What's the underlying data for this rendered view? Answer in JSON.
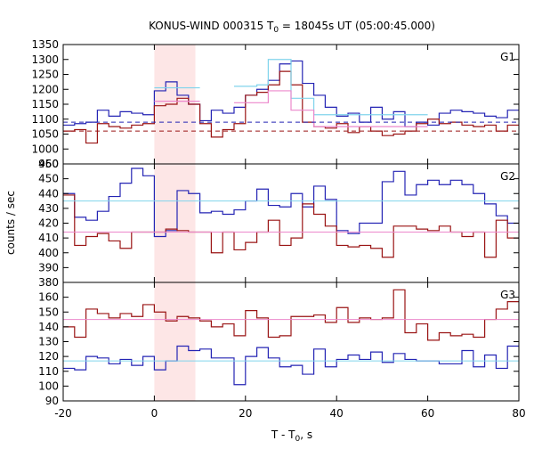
{
  "title": "KONUS-WIND 000315 T",
  "title_sub": "0",
  "title_rest": " = 18045s UT (05:00:45.000)",
  "xlabel": "T - T",
  "xlabel_sub": "0",
  "xlabel_rest": ", s",
  "ylabel": "counts / sec",
  "colors": {
    "blue": "#2424b4",
    "red": "#9a1414",
    "cyan": "#80d4ec",
    "pink": "#ec88cc",
    "shade": "#fde6e6"
  },
  "chart_data": {
    "type": "line",
    "xlim": [
      -20,
      80
    ],
    "x_ticks": [
      -20,
      0,
      20,
      40,
      60,
      80
    ],
    "step_edges": [
      -20,
      -17.5,
      -15,
      -12.5,
      -10,
      -7.5,
      -5,
      -2.5,
      0,
      2.5,
      5,
      7.5,
      10,
      12.5,
      15,
      17.5,
      20,
      22.5,
      25,
      27.5,
      30,
      32.5,
      35,
      37.5,
      40,
      42.5,
      45,
      47.5,
      50,
      52.5,
      55,
      57.5,
      60,
      62.5,
      65,
      67.5,
      70,
      72.5,
      75,
      77.5,
      80
    ],
    "shaded_interval": [
      0,
      9
    ],
    "panels": [
      {
        "label": "G1",
        "ylim": [
          950,
          1350
        ],
        "y_ticks": [
          950,
          1000,
          1050,
          1100,
          1150,
          1200,
          1250,
          1300,
          1350
        ],
        "series": [
          {
            "color": "#2424b4",
            "style": "step",
            "values": [
              1080,
              1085,
              1090,
              1130,
              1110,
              1125,
              1120,
              1115,
              1195,
              1225,
              1180,
              1150,
              1095,
              1130,
              1120,
              1140,
              1180,
              1200,
              1230,
              1285,
              1295,
              1220,
              1180,
              1140,
              1110,
              1120,
              1090,
              1140,
              1100,
              1125,
              1075,
              1090,
              1080,
              1120,
              1130,
              1125,
              1120,
              1110,
              1105,
              1130
            ]
          },
          {
            "color": "#9a1414",
            "style": "step",
            "values": [
              1060,
              1065,
              1020,
              1085,
              1075,
              1070,
              1080,
              1085,
              1145,
              1150,
              1170,
              1150,
              1085,
              1040,
              1065,
              1085,
              1180,
              1190,
              1215,
              1260,
              1215,
              1090,
              1075,
              1070,
              1085,
              1055,
              1075,
              1060,
              1045,
              1050,
              1060,
              1085,
              1100,
              1085,
              1090,
              1080,
              1075,
              1080,
              1060,
              1080
            ]
          },
          {
            "color": "#80d4ec",
            "style": "step",
            "from": 0,
            "values": [
              1205,
              1205,
              1205,
              1205,
              null,
              null,
              null,
              1210,
              1210,
              1215,
              1300,
              1300,
              1170,
              1170,
              1115,
              1115,
              1115,
              1115,
              1115,
              1115,
              1115,
              1115,
              1115,
              1115
            ]
          },
          {
            "color": "#ec88cc",
            "style": "step",
            "from": 0,
            "values": [
              1160,
              1160,
              1160,
              1160,
              null,
              null,
              null,
              1155,
              1155,
              1155,
              1195,
              1195,
              1130,
              1130,
              1075,
              1075,
              1075,
              1075,
              1075,
              1075,
              1075,
              1075,
              1075,
              1075
            ]
          },
          {
            "color": "#2424b4",
            "style": "dashed-level",
            "value": 1090
          },
          {
            "color": "#9a1414",
            "style": "dashed-level",
            "value": 1060
          }
        ]
      },
      {
        "label": "G2",
        "ylim": [
          380,
          460
        ],
        "y_ticks": [
          380,
          390,
          400,
          410,
          420,
          430,
          440,
          450,
          460
        ],
        "series": [
          {
            "color": "#2424b4",
            "style": "step",
            "values": [
              440,
              424,
              422,
              428,
              438,
              447,
              457,
              452,
              411,
              415,
              442,
              440,
              427,
              428,
              426,
              429,
              435,
              443,
              432,
              431,
              440,
              431,
              445,
              436,
              415,
              413,
              420,
              420,
              448,
              455,
              439,
              446,
              449,
              446,
              449,
              446,
              440,
              433,
              425,
              420
            ]
          },
          {
            "color": "#9a1414",
            "style": "step",
            "values": [
              439,
              405,
              411,
              413,
              408,
              403,
              414,
              414,
              414,
              416,
              415,
              414,
              414,
              400,
              414,
              402,
              407,
              414,
              422,
              405,
              410,
              433,
              426,
              418,
              405,
              404,
              405,
              403,
              397,
              418,
              418,
              416,
              415,
              418,
              414,
              411,
              414,
              397,
              422,
              410
            ]
          },
          {
            "color": "#80d4ec",
            "style": "level",
            "value": 435
          },
          {
            "color": "#ec88cc",
            "style": "level",
            "value": 414
          }
        ]
      },
      {
        "label": "G3",
        "ylim": [
          90,
          170
        ],
        "y_ticks": [
          90,
          100,
          110,
          120,
          130,
          140,
          150,
          160
        ],
        "series": [
          {
            "color": "#2424b4",
            "style": "step",
            "values": [
              112,
              111,
              120,
              119,
              115,
              118,
              114,
              120,
              111,
              117,
              127,
              124,
              125,
              119,
              119,
              101,
              120,
              126,
              119,
              113,
              114,
              108,
              125,
              113,
              118,
              121,
              118,
              123,
              116,
              122,
              118,
              117,
              117,
              115,
              115,
              124,
              113,
              121,
              112,
              127
            ]
          },
          {
            "color": "#9a1414",
            "style": "step",
            "values": [
              140,
              133,
              152,
              149,
              146,
              149,
              147,
              155,
              150,
              144,
              147,
              146,
              144,
              140,
              142,
              134,
              151,
              146,
              133,
              134,
              147,
              147,
              148,
              143,
              153,
              143,
              146,
              145,
              146,
              165,
              136,
              142,
              131,
              136,
              134,
              135,
              133,
              145,
              152,
              157
            ]
          },
          {
            "color": "#ec88cc",
            "style": "level",
            "value": 145
          },
          {
            "color": "#80d4ec",
            "style": "level",
            "value": 117
          }
        ]
      }
    ]
  }
}
